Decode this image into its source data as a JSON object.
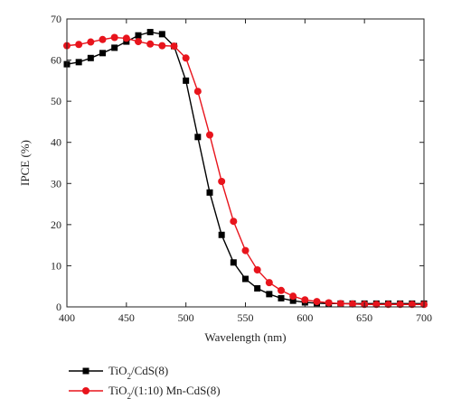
{
  "chart_data": {
    "type": "line",
    "xlabel": "Wavelength (nm)",
    "ylabel": "IPCE (%)",
    "xlim": [
      400,
      700
    ],
    "ylim": [
      0,
      70
    ],
    "xticks": [
      400,
      450,
      500,
      550,
      600,
      650,
      700
    ],
    "yticks": [
      0,
      10,
      20,
      30,
      40,
      50,
      60,
      70
    ],
    "grid": false,
    "legend_position": "bottom-left, below the plot",
    "series": [
      {
        "name": "TiO2/CdS(8)",
        "name_parts": [
          {
            "text": "TiO",
            "sub": false
          },
          {
            "text": "2",
            "sub": true
          },
          {
            "text": "/CdS(8)",
            "sub": false
          }
        ],
        "color": "#000000",
        "marker": "square",
        "x": [
          400,
          410,
          420,
          430,
          440,
          450,
          460,
          470,
          480,
          490,
          500,
          510,
          520,
          530,
          540,
          550,
          560,
          570,
          580,
          590,
          600,
          610,
          620,
          630,
          640,
          650,
          660,
          670,
          680,
          690,
          700
        ],
        "values": [
          59.0,
          59.5,
          60.5,
          61.7,
          63.0,
          64.5,
          66.0,
          66.8,
          66.3,
          63.4,
          55.0,
          41.3,
          27.8,
          17.5,
          10.8,
          6.8,
          4.5,
          3.1,
          2.1,
          1.5,
          1.1,
          0.9,
          0.8,
          0.8,
          0.8,
          0.8,
          0.8,
          0.8,
          0.8,
          0.8,
          0.8
        ]
      },
      {
        "name": "TiO2/(1:10) Mn-CdS(8)",
        "name_parts": [
          {
            "text": "TiO",
            "sub": false
          },
          {
            "text": "2",
            "sub": true
          },
          {
            "text": "/(1:10) Mn-CdS(8)",
            "sub": false
          }
        ],
        "color": "#e8141c",
        "marker": "circle",
        "x": [
          400,
          410,
          420,
          430,
          440,
          450,
          460,
          470,
          480,
          490,
          500,
          510,
          520,
          530,
          540,
          550,
          560,
          570,
          580,
          590,
          600,
          610,
          620,
          630,
          640,
          650,
          660,
          670,
          680,
          690,
          700
        ],
        "values": [
          63.5,
          63.8,
          64.4,
          65.0,
          65.5,
          65.3,
          64.5,
          63.9,
          63.5,
          63.4,
          60.5,
          52.4,
          41.8,
          30.5,
          20.8,
          13.7,
          9.0,
          5.9,
          4.0,
          2.6,
          1.7,
          1.3,
          1.0,
          0.8,
          0.7,
          0.6,
          0.6,
          0.6,
          0.6,
          0.6,
          0.6
        ]
      }
    ]
  }
}
